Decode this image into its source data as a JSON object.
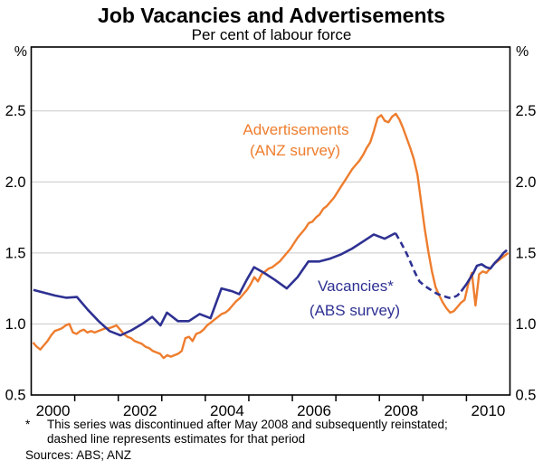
{
  "chart_data": {
    "type": "line",
    "title": "Job Vacancies and Advertisements",
    "subtitle": "Per cent of labour force",
    "unit_left": "%",
    "unit_right": "%",
    "xlim": [
      2000,
      2011
    ],
    "ylim": [
      0.5,
      2.95
    ],
    "grid": true,
    "yticks": [
      {
        "value": 0.5,
        "label": "0.5"
      },
      {
        "value": 1.0,
        "label": "1.0"
      },
      {
        "value": 1.5,
        "label": "1.5"
      },
      {
        "value": 2.0,
        "label": "2.0"
      },
      {
        "value": 2.5,
        "label": "2.5"
      }
    ],
    "xticks_years": [
      2001,
      2002,
      2003,
      2004,
      2005,
      2006,
      2007,
      2008,
      2009,
      2010
    ],
    "xlabels": [
      {
        "year": 2000,
        "label": "2000"
      },
      {
        "year": 2002,
        "label": "2002"
      },
      {
        "year": 2004,
        "label": "2004"
      },
      {
        "year": 2006,
        "label": "2006"
      },
      {
        "year": 2008,
        "label": "2008"
      },
      {
        "year": 2010,
        "label": "2010"
      }
    ],
    "colors": {
      "advertisements": "#ee7d2e",
      "vacancies": "#2e3192",
      "gridline": "#c9c9c9",
      "frame": "#000000"
    },
    "labels": {
      "advertisements": {
        "line1": "Advertisements",
        "line2": "(ANZ survey)"
      },
      "vacancies": {
        "line1": "Vacancies*",
        "line2": "(ABS survey)"
      }
    },
    "series": [
      {
        "name": "Advertisements (ANZ survey)",
        "color_key": "advertisements",
        "frequency": "monthly",
        "start_year": 2000,
        "values": [
          0.87,
          0.84,
          0.82,
          0.85,
          0.88,
          0.92,
          0.95,
          0.96,
          0.97,
          0.99,
          1.0,
          0.94,
          0.93,
          0.95,
          0.96,
          0.94,
          0.95,
          0.94,
          0.95,
          0.96,
          0.97,
          0.97,
          0.98,
          0.99,
          0.96,
          0.93,
          0.91,
          0.9,
          0.88,
          0.87,
          0.86,
          0.84,
          0.83,
          0.81,
          0.8,
          0.79,
          0.76,
          0.78,
          0.77,
          0.78,
          0.79,
          0.81,
          0.9,
          0.91,
          0.88,
          0.93,
          0.94,
          0.96,
          0.99,
          1.01,
          1.03,
          1.05,
          1.07,
          1.08,
          1.1,
          1.13,
          1.16,
          1.18,
          1.21,
          1.24,
          1.28,
          1.33,
          1.3,
          1.35,
          1.37,
          1.39,
          1.4,
          1.42,
          1.44,
          1.47,
          1.5,
          1.53,
          1.57,
          1.61,
          1.64,
          1.67,
          1.71,
          1.72,
          1.75,
          1.77,
          1.81,
          1.83,
          1.86,
          1.89,
          1.93,
          1.97,
          2.01,
          2.05,
          2.09,
          2.12,
          2.15,
          2.19,
          2.24,
          2.28,
          2.36,
          2.45,
          2.47,
          2.43,
          2.42,
          2.46,
          2.48,
          2.44,
          2.38,
          2.31,
          2.24,
          2.16,
          2.05,
          1.86,
          1.67,
          1.51,
          1.37,
          1.26,
          1.2,
          1.15,
          1.11,
          1.08,
          1.09,
          1.12,
          1.15,
          1.17,
          1.28,
          1.36,
          1.13,
          1.35,
          1.37,
          1.36,
          1.39,
          1.42,
          1.44,
          1.46,
          1.48,
          1.5
        ]
      },
      {
        "name": "Vacancies (ABS survey)",
        "color_key": "vacancies",
        "frequency": "quarterly",
        "segments": [
          {
            "style": "solid",
            "points": [
              [
                2000.05,
                1.24
              ],
              [
                2000.3,
                1.22
              ],
              [
                2000.55,
                1.2
              ],
              [
                2000.8,
                1.185
              ],
              [
                2001.05,
                1.19
              ],
              [
                2001.3,
                1.1
              ],
              [
                2001.55,
                1.02
              ],
              [
                2001.8,
                0.95
              ],
              [
                2002.05,
                0.92
              ],
              [
                2002.3,
                0.955
              ],
              [
                2002.55,
                1.0
              ],
              [
                2002.78,
                1.05
              ],
              [
                2002.97,
                0.99
              ],
              [
                2003.12,
                1.08
              ],
              [
                2003.37,
                1.02
              ],
              [
                2003.62,
                1.02
              ],
              [
                2003.87,
                1.07
              ],
              [
                2004.12,
                1.04
              ],
              [
                2004.37,
                1.25
              ],
              [
                2004.62,
                1.23
              ],
              [
                2004.78,
                1.21
              ],
              [
                2004.95,
                1.31
              ],
              [
                2005.12,
                1.4
              ],
              [
                2005.35,
                1.36
              ],
              [
                2005.6,
                1.31
              ],
              [
                2005.87,
                1.25
              ],
              [
                2006.12,
                1.33
              ],
              [
                2006.37,
                1.44
              ],
              [
                2006.62,
                1.44
              ],
              [
                2006.87,
                1.46
              ],
              [
                2007.12,
                1.49
              ],
              [
                2007.37,
                1.53
              ],
              [
                2007.62,
                1.58
              ],
              [
                2007.87,
                1.63
              ],
              [
                2008.12,
                1.6
              ],
              [
                2008.37,
                1.64
              ]
            ]
          },
          {
            "style": "dashed",
            "points": [
              [
                2008.37,
                1.64
              ],
              [
                2008.5,
                1.57
              ],
              [
                2008.62,
                1.5
              ],
              [
                2008.72,
                1.43
              ],
              [
                2008.82,
                1.36
              ],
              [
                2008.92,
                1.3
              ],
              [
                2009.03,
                1.27
              ],
              [
                2009.13,
                1.25
              ],
              [
                2009.23,
                1.23
              ],
              [
                2009.34,
                1.21
              ],
              [
                2009.44,
                1.2
              ],
              [
                2009.54,
                1.19
              ],
              [
                2009.65,
                1.18
              ],
              [
                2009.79,
                1.2
              ],
              [
                2009.88,
                1.23
              ]
            ]
          },
          {
            "style": "solid",
            "points": [
              [
                2009.88,
                1.23
              ],
              [
                2010.0,
                1.28
              ],
              [
                2010.08,
                1.32
              ],
              [
                2010.16,
                1.36
              ],
              [
                2010.24,
                1.41
              ],
              [
                2010.35,
                1.42
              ],
              [
                2010.45,
                1.4
              ],
              [
                2010.55,
                1.39
              ],
              [
                2010.65,
                1.43
              ],
              [
                2010.75,
                1.46
              ],
              [
                2010.85,
                1.5
              ],
              [
                2010.93,
                1.52
              ]
            ]
          }
        ]
      }
    ],
    "footnote_marker": "*",
    "footnote_line1": "This series was discontinued after May 2008 and subsequently reinstated;",
    "footnote_line2": "dashed line represents estimates for that period",
    "sources": "Sources: ABS; ANZ"
  }
}
